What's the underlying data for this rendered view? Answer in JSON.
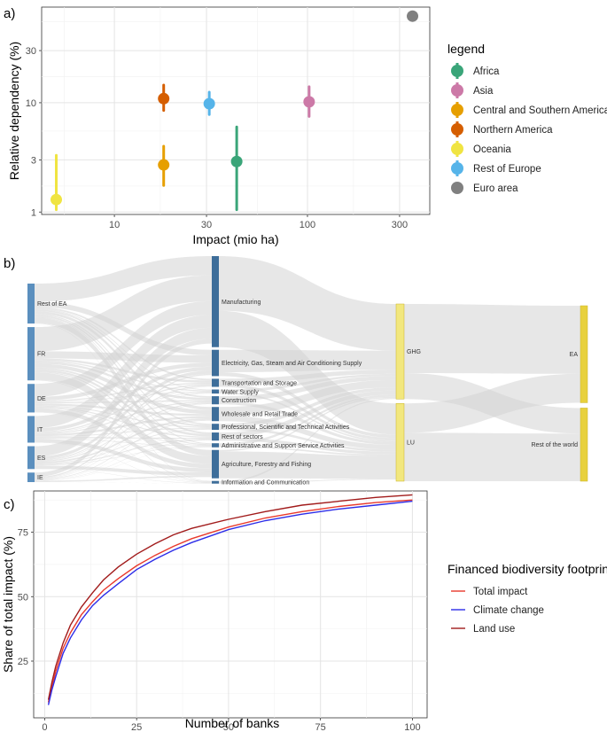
{
  "panels": {
    "a": {
      "label": "a)"
    },
    "b": {
      "label": "b)"
    },
    "c": {
      "label": "c)"
    }
  },
  "chart_data": [
    {
      "type": "scatter",
      "panel": "a",
      "xlabel": "Impact (mio ha)",
      "ylabel": "Relative dependency (%)",
      "xscale": "log10",
      "yscale": "log10",
      "xlim": [
        4.2,
        430
      ],
      "ylim": [
        0.95,
        75
      ],
      "xticks": [
        10,
        30,
        100,
        300
      ],
      "xtick_labels": [
        "10",
        "30",
        "100",
        "300"
      ],
      "yticks": [
        1,
        3,
        10,
        30
      ],
      "ytick_labels": [
        "1",
        "3",
        "10",
        "30"
      ],
      "grid": true,
      "legend": {
        "title": "legend",
        "position": "right",
        "entries": [
          {
            "name": "Africa",
            "color": "#3aa579"
          },
          {
            "name": "Asia",
            "color": "#cc79a7"
          },
          {
            "name": "Central and Southern America",
            "color": "#e69f00"
          },
          {
            "name": "Northern America",
            "color": "#d55e00"
          },
          {
            "name": "Oceania",
            "color": "#f0e442"
          },
          {
            "name": "Rest of Europe",
            "color": "#56b4e9"
          },
          {
            "name": "Euro area",
            "color": "#808080"
          }
        ]
      },
      "series": [
        {
          "name": "Africa",
          "x": 43,
          "y": 2.9,
          "ylow": 1.05,
          "yhigh": 6.0
        },
        {
          "name": "Asia",
          "x": 102,
          "y": 10.2,
          "ylow": 7.5,
          "yhigh": 14.0
        },
        {
          "name": "Central and Southern America",
          "x": 18,
          "y": 2.7,
          "ylow": 1.75,
          "yhigh": 4.0
        },
        {
          "name": "Northern America",
          "x": 18,
          "y": 10.9,
          "ylow": 8.5,
          "yhigh": 14.5
        },
        {
          "name": "Oceania",
          "x": 5.0,
          "y": 1.3,
          "ylow": 1.05,
          "yhigh": 3.3
        },
        {
          "name": "Rest of Europe",
          "x": 31,
          "y": 9.8,
          "ylow": 7.8,
          "yhigh": 12.5
        },
        {
          "name": "Euro area",
          "x": 350,
          "y": 62,
          "ylow": 62,
          "yhigh": 62
        }
      ]
    },
    {
      "type": "sankey",
      "panel": "b",
      "columns": [
        [
          {
            "name": "Rest of EA",
            "value": 21
          },
          {
            "name": "FR",
            "value": 28
          },
          {
            "name": "DE",
            "value": 15
          },
          {
            "name": "IT",
            "value": 14
          },
          {
            "name": "ES",
            "value": 12
          },
          {
            "name": "IE",
            "value": 5
          }
        ],
        [
          {
            "name": "Manufacturing",
            "value": 45
          },
          {
            "name": "Electricity, Gas, Steam and Air Conditioning Supply",
            "value": 13
          },
          {
            "name": "Transportation and Storage",
            "value": 4
          },
          {
            "name": "Water Supply",
            "value": 2
          },
          {
            "name": "Construction",
            "value": 4
          },
          {
            "name": "Wholesale and Retail Trade",
            "value": 7
          },
          {
            "name": "Professional, Scientific and Technical Activities",
            "value": 3
          },
          {
            "name": "Rest of sectors",
            "value": 4
          },
          {
            "name": "Administrative and Support Service Activities",
            "value": 2
          },
          {
            "name": "Agriculture, Forestry and Fishing",
            "value": 14
          },
          {
            "name": "Information and Communication",
            "value": 1
          }
        ],
        [
          {
            "name": "GHG",
            "value": 55
          },
          {
            "name": "LU",
            "value": 45
          }
        ],
        [
          {
            "name": "EA",
            "value": 57
          },
          {
            "name": "Rest of the world",
            "value": 43
          }
        ]
      ],
      "flows_between_columns_3_4": [
        {
          "from": "GHG",
          "to": "EA",
          "value": 40
        },
        {
          "from": "GHG",
          "to": "Rest of the world",
          "value": 15
        },
        {
          "from": "LU",
          "to": "EA",
          "value": 17
        },
        {
          "from": "LU",
          "to": "Rest of the world",
          "value": 28
        }
      ],
      "colors": {
        "countries": "#5b8fbe",
        "sectors": "#3e6e9a",
        "impacts": "#f2e77e",
        "regions": "#e8d13d",
        "links": "#d4d4d4"
      }
    },
    {
      "type": "line",
      "panel": "c",
      "xlabel": "Number of banks",
      "ylabel": "Share of total impact (%)",
      "xlim": [
        -3,
        104
      ],
      "ylim": [
        3,
        91
      ],
      "xticks": [
        0,
        25,
        50,
        75,
        100
      ],
      "yticks": [
        25,
        50,
        75
      ],
      "grid": true,
      "legend": {
        "title": "Financed biodiversity footprint",
        "position": "right"
      },
      "x": [
        1,
        2,
        3,
        5,
        7,
        10,
        13,
        16,
        20,
        25,
        30,
        35,
        40,
        50,
        60,
        70,
        80,
        90,
        100
      ],
      "series": [
        {
          "name": "Total impact",
          "color": "#e8392c",
          "values": [
            9,
            15,
            21,
            30,
            36,
            43,
            48,
            52.5,
            57,
            62,
            66,
            69.5,
            72.5,
            77,
            80.5,
            83,
            85,
            86.5,
            87.5
          ]
        },
        {
          "name": "Climate change",
          "color": "#2c2ce8",
          "values": [
            8,
            14,
            19,
            28,
            34,
            41,
            46.5,
            50.5,
            55,
            60.5,
            64.5,
            68,
            71,
            76,
            79.5,
            82,
            84,
            85.5,
            87
          ]
        },
        {
          "name": "Land use",
          "color": "#a11b1b",
          "values": [
            10,
            17,
            23,
            32,
            39,
            46,
            51.5,
            56.5,
            61.5,
            66.5,
            70.5,
            74,
            76.5,
            80,
            83,
            85.5,
            87,
            88.5,
            89.5
          ]
        }
      ]
    }
  ]
}
